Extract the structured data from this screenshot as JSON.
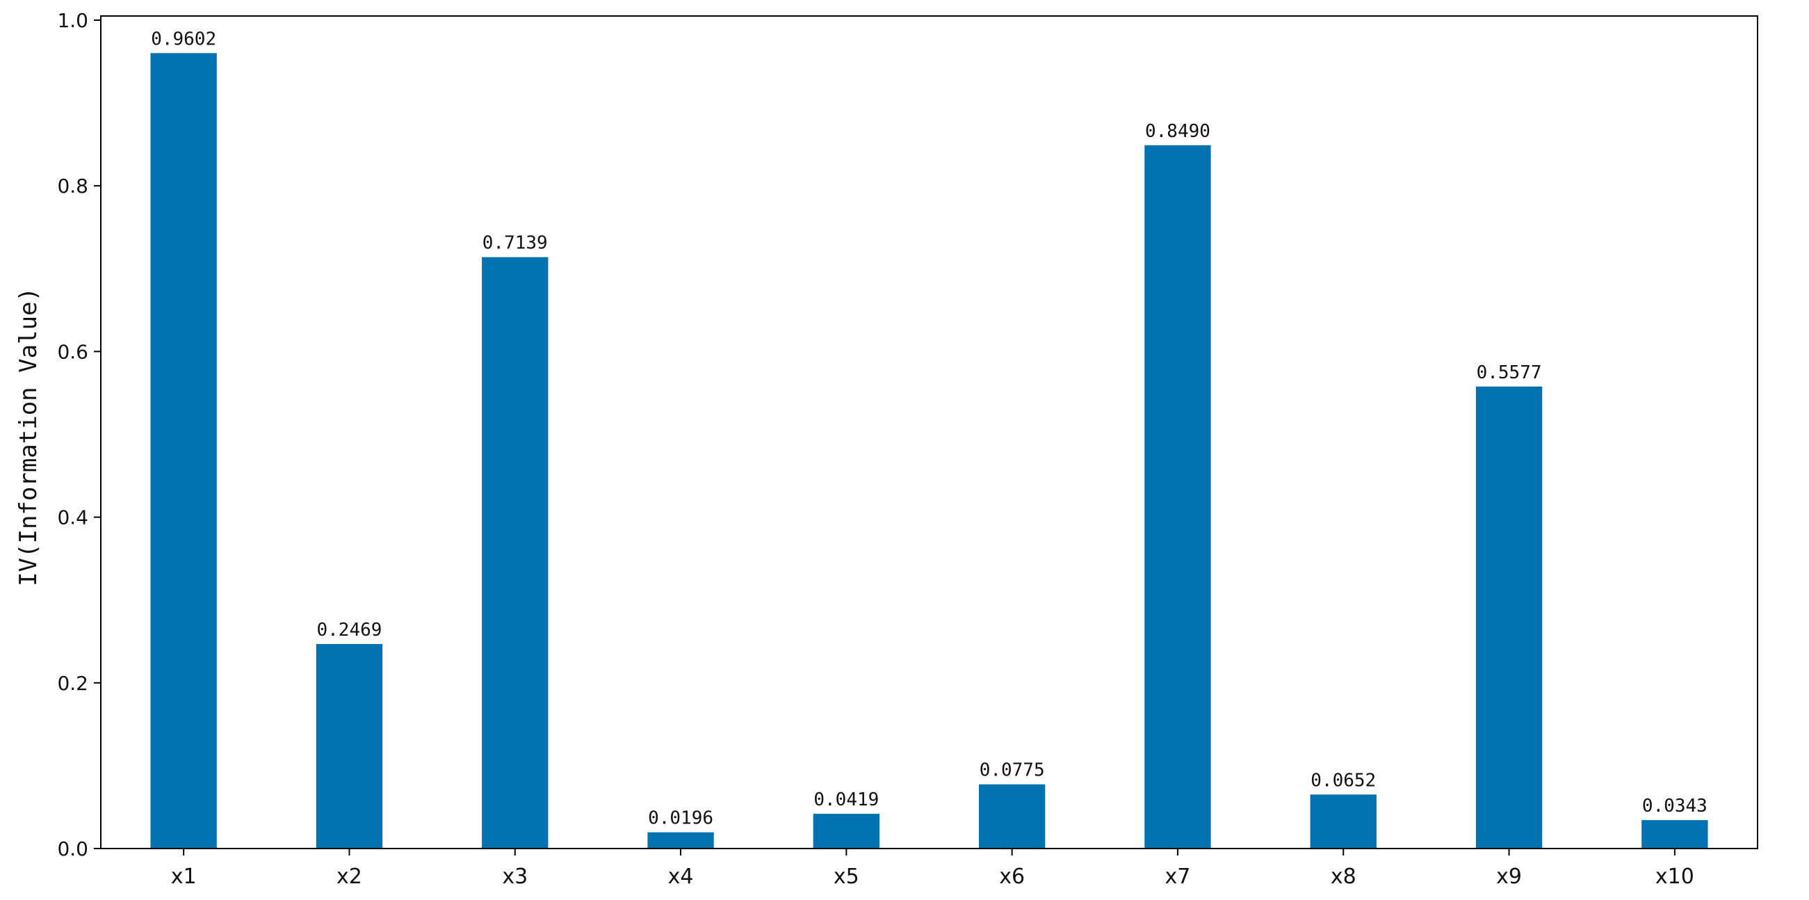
{
  "chart_data": {
    "type": "bar",
    "categories": [
      "x1",
      "x2",
      "x3",
      "x4",
      "x5",
      "x6",
      "x7",
      "x8",
      "x9",
      "x10"
    ],
    "values": [
      0.9602,
      0.2469,
      0.7139,
      0.0196,
      0.0419,
      0.0775,
      0.849,
      0.0652,
      0.5577,
      0.0343
    ],
    "data_labels": [
      "0.9602",
      "0.2469",
      "0.7139",
      "0.0196",
      "0.0419",
      "0.0775",
      "0.8490",
      "0.0652",
      "0.5577",
      "0.0343"
    ],
    "ylabel": "IV(Information Value)",
    "yticks": [
      "0.0",
      "0.2",
      "0.4",
      "0.6",
      "0.8",
      "1.0"
    ],
    "ylim": [
      0,
      1.005
    ],
    "grid": false,
    "bar_color": "#0072b2"
  }
}
